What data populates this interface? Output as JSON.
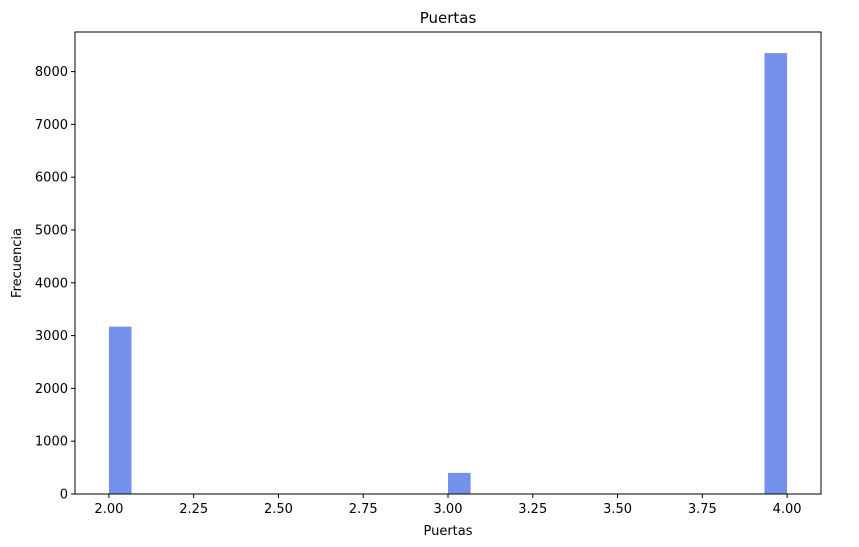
{
  "chart_data": {
    "type": "bar",
    "title": "Puertas",
    "xlabel": "Puertas",
    "ylabel": "Frecuencia",
    "xlim": [
      1.9,
      4.1
    ],
    "ylim": [
      0,
      8750
    ],
    "xticks": [
      2.0,
      2.25,
      2.5,
      2.75,
      3.0,
      3.25,
      3.5,
      3.75,
      4.0
    ],
    "xtick_labels": [
      "2.00",
      "2.25",
      "2.50",
      "2.75",
      "3.00",
      "3.25",
      "3.50",
      "3.75",
      "4.00"
    ],
    "yticks": [
      0,
      1000,
      2000,
      3000,
      4000,
      5000,
      6000,
      7000,
      8000
    ],
    "ytick_labels": [
      "0",
      "1000",
      "2000",
      "3000",
      "4000",
      "5000",
      "6000",
      "7000",
      "8000"
    ],
    "bin_width": 0.0667,
    "bars": [
      {
        "x_start": 2.0,
        "x_end": 2.0667,
        "value": 3170
      },
      {
        "x_start": 3.0,
        "x_end": 3.0667,
        "value": 400
      },
      {
        "x_start": 3.9333,
        "x_end": 4.0,
        "value": 8350
      }
    ],
    "bar_color": "#7591ea",
    "grid": false
  }
}
